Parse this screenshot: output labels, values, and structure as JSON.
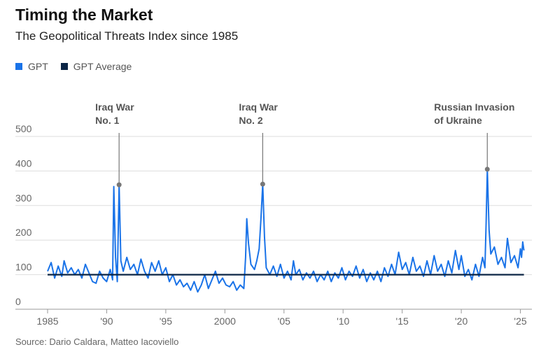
{
  "title": "Timing the Market",
  "subtitle": "The Geopolitical Threats Index since 1985",
  "legend": [
    {
      "label": "GPT",
      "color": "#1a73e8"
    },
    {
      "label": "GPT Average",
      "color": "#0b2545"
    }
  ],
  "source": "Source: Dario Caldara, Matteo Iacoviello",
  "chart_data": {
    "type": "line",
    "title": "Timing the Market",
    "subtitle": "The Geopolitical Threats Index since 1985",
    "xlim": [
      1985,
      2025.5
    ],
    "ylim": [
      0,
      500
    ],
    "y_ticks": [
      0,
      100,
      200,
      300,
      400,
      500
    ],
    "x_ticks": [
      {
        "value": 1985,
        "label": "1985"
      },
      {
        "value": 1990,
        "label": "'90"
      },
      {
        "value": 1995,
        "label": "'95"
      },
      {
        "value": 2000,
        "label": "2000"
      },
      {
        "value": 2005,
        "label": "'05"
      },
      {
        "value": 2010,
        "label": "'10"
      },
      {
        "value": 2015,
        "label": "'15"
      },
      {
        "value": 2020,
        "label": "'20"
      },
      {
        "value": 2025,
        "label": "'25"
      }
    ],
    "average": 100,
    "grid": true,
    "series": [
      {
        "name": "GPT",
        "color": "#1a73e8",
        "points": [
          [
            1985.0,
            110
          ],
          [
            1985.3,
            135
          ],
          [
            1985.6,
            90
          ],
          [
            1985.9,
            125
          ],
          [
            1986.2,
            95
          ],
          [
            1986.4,
            140
          ],
          [
            1986.7,
            105
          ],
          [
            1987.0,
            120
          ],
          [
            1987.3,
            100
          ],
          [
            1987.6,
            115
          ],
          [
            1987.9,
            90
          ],
          [
            1988.2,
            130
          ],
          [
            1988.5,
            105
          ],
          [
            1988.8,
            80
          ],
          [
            1989.1,
            75
          ],
          [
            1989.4,
            110
          ],
          [
            1989.7,
            90
          ],
          [
            1990.0,
            80
          ],
          [
            1990.3,
            115
          ],
          [
            1990.5,
            85
          ],
          [
            1990.6,
            355
          ],
          [
            1990.75,
            150
          ],
          [
            1990.9,
            80
          ],
          [
            1991.05,
            360
          ],
          [
            1991.2,
            140
          ],
          [
            1991.4,
            110
          ],
          [
            1991.7,
            150
          ],
          [
            1992.0,
            115
          ],
          [
            1992.3,
            130
          ],
          [
            1992.6,
            100
          ],
          [
            1992.9,
            145
          ],
          [
            1993.2,
            110
          ],
          [
            1993.5,
            90
          ],
          [
            1993.8,
            135
          ],
          [
            1994.1,
            110
          ],
          [
            1994.4,
            140
          ],
          [
            1994.7,
            100
          ],
          [
            1995.0,
            120
          ],
          [
            1995.3,
            80
          ],
          [
            1995.6,
            100
          ],
          [
            1995.9,
            70
          ],
          [
            1996.2,
            85
          ],
          [
            1996.5,
            65
          ],
          [
            1996.8,
            75
          ],
          [
            1997.1,
            55
          ],
          [
            1997.4,
            80
          ],
          [
            1997.7,
            50
          ],
          [
            1998.0,
            70
          ],
          [
            1998.3,
            100
          ],
          [
            1998.6,
            60
          ],
          [
            1998.9,
            85
          ],
          [
            1999.2,
            110
          ],
          [
            1999.5,
            75
          ],
          [
            1999.8,
            90
          ],
          [
            2000.1,
            70
          ],
          [
            2000.4,
            65
          ],
          [
            2000.7,
            80
          ],
          [
            2001.0,
            55
          ],
          [
            2001.3,
            70
          ],
          [
            2001.6,
            60
          ],
          [
            2001.75,
            150
          ],
          [
            2001.85,
            262
          ],
          [
            2002.0,
            190
          ],
          [
            2002.2,
            130
          ],
          [
            2002.5,
            115
          ],
          [
            2002.7,
            140
          ],
          [
            2002.9,
            175
          ],
          [
            2003.05,
            260
          ],
          [
            2003.2,
            362
          ],
          [
            2003.35,
            210
          ],
          [
            2003.5,
            120
          ],
          [
            2003.8,
            100
          ],
          [
            2004.1,
            125
          ],
          [
            2004.4,
            95
          ],
          [
            2004.7,
            130
          ],
          [
            2005.0,
            90
          ],
          [
            2005.3,
            110
          ],
          [
            2005.6,
            85
          ],
          [
            2005.8,
            140
          ],
          [
            2006.0,
            100
          ],
          [
            2006.3,
            115
          ],
          [
            2006.6,
            85
          ],
          [
            2006.9,
            105
          ],
          [
            2007.2,
            90
          ],
          [
            2007.5,
            110
          ],
          [
            2007.8,
            80
          ],
          [
            2008.1,
            100
          ],
          [
            2008.4,
            85
          ],
          [
            2008.7,
            110
          ],
          [
            2009.0,
            80
          ],
          [
            2009.3,
            105
          ],
          [
            2009.6,
            90
          ],
          [
            2009.9,
            120
          ],
          [
            2010.2,
            85
          ],
          [
            2010.5,
            110
          ],
          [
            2010.8,
            95
          ],
          [
            2011.1,
            125
          ],
          [
            2011.4,
            90
          ],
          [
            2011.7,
            115
          ],
          [
            2012.0,
            80
          ],
          [
            2012.3,
            105
          ],
          [
            2012.6,
            85
          ],
          [
            2012.9,
            110
          ],
          [
            2013.2,
            80
          ],
          [
            2013.5,
            120
          ],
          [
            2013.8,
            95
          ],
          [
            2014.1,
            130
          ],
          [
            2014.4,
            100
          ],
          [
            2014.7,
            165
          ],
          [
            2015.0,
            115
          ],
          [
            2015.3,
            135
          ],
          [
            2015.6,
            100
          ],
          [
            2015.9,
            150
          ],
          [
            2016.2,
            110
          ],
          [
            2016.5,
            125
          ],
          [
            2016.8,
            95
          ],
          [
            2017.1,
            140
          ],
          [
            2017.4,
            100
          ],
          [
            2017.7,
            155
          ],
          [
            2018.0,
            110
          ],
          [
            2018.3,
            130
          ],
          [
            2018.6,
            95
          ],
          [
            2018.9,
            140
          ],
          [
            2019.2,
            105
          ],
          [
            2019.5,
            170
          ],
          [
            2019.8,
            115
          ],
          [
            2020.0,
            155
          ],
          [
            2020.3,
            95
          ],
          [
            2020.6,
            115
          ],
          [
            2020.9,
            85
          ],
          [
            2021.2,
            130
          ],
          [
            2021.5,
            95
          ],
          [
            2021.8,
            150
          ],
          [
            2022.0,
            120
          ],
          [
            2022.1,
            250
          ],
          [
            2022.2,
            405
          ],
          [
            2022.35,
            230
          ],
          [
            2022.5,
            160
          ],
          [
            2022.8,
            180
          ],
          [
            2023.1,
            130
          ],
          [
            2023.4,
            150
          ],
          [
            2023.7,
            120
          ],
          [
            2023.9,
            205
          ],
          [
            2024.2,
            135
          ],
          [
            2024.5,
            155
          ],
          [
            2024.8,
            120
          ],
          [
            2025.0,
            175
          ],
          [
            2025.1,
            150
          ],
          [
            2025.2,
            195
          ],
          [
            2025.3,
            170
          ]
        ]
      },
      {
        "name": "GPT Average",
        "color": "#0b2545",
        "points": [
          [
            1985.0,
            100
          ],
          [
            2025.3,
            100
          ]
        ]
      }
    ],
    "annotations": [
      {
        "x": 1991.05,
        "y": 360,
        "lines": [
          "Iraq War",
          "No. 1"
        ]
      },
      {
        "x": 2003.2,
        "y": 362,
        "lines": [
          "Iraq War",
          "No. 2"
        ]
      },
      {
        "x": 2022.2,
        "y": 405,
        "lines": [
          "Russian Invasion",
          "of Ukraine"
        ]
      }
    ]
  }
}
